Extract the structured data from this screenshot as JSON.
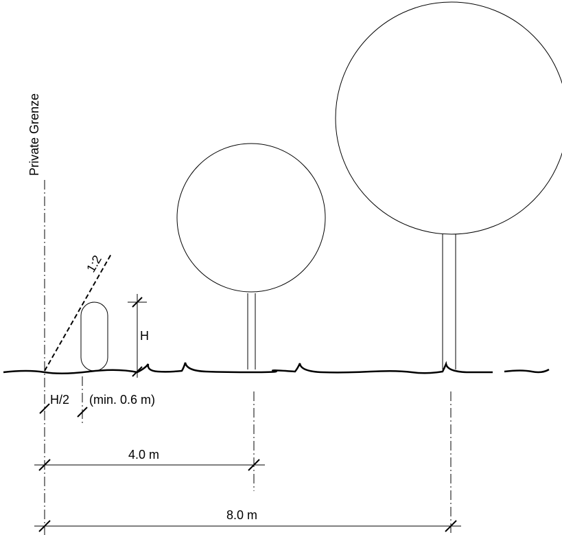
{
  "boundary_label": "Private Grenze",
  "slope_label": "1:2",
  "hedge_height_label": "H",
  "distance_labels": {
    "half_height": "H/2",
    "minimum": "(min. 0.6 m)",
    "small_tree": "4.0 m",
    "large_tree": "8.0 m"
  }
}
